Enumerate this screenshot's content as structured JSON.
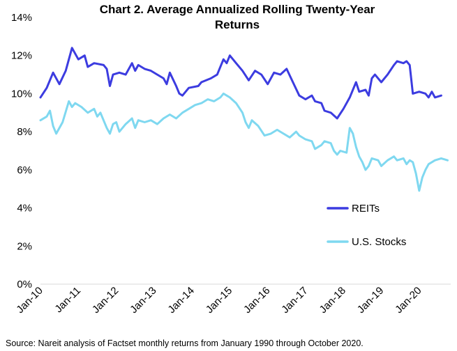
{
  "chart_data": {
    "type": "line",
    "title_line1": "Chart 2. Average Annualized Rolling Twenty-Year",
    "title_line2": "Returns",
    "xlabel": "",
    "ylabel": "",
    "x_tick_labels": [
      "Jan-10",
      "Jan-11",
      "Jan-12",
      "Jan-13",
      "Jan-14",
      "Jan-15",
      "Jan-16",
      "Jan-17",
      "Jan-18",
      "Jan-19",
      "Jan-20"
    ],
    "y_tick_labels": [
      "0%",
      "2%",
      "4%",
      "6%",
      "8%",
      "10%",
      "12%",
      "14%"
    ],
    "ylim": [
      0,
      14
    ],
    "x_unit": "months since Jan-10",
    "xlim": [
      0,
      130
    ],
    "grid": false,
    "legend_position": "right",
    "series": [
      {
        "name": "REITs",
        "color": "#3c3ce0",
        "points": [
          [
            0,
            9.8
          ],
          [
            2,
            10.3
          ],
          [
            4,
            11.1
          ],
          [
            6,
            10.5
          ],
          [
            8,
            11.2
          ],
          [
            10,
            12.4
          ],
          [
            12,
            11.8
          ],
          [
            14,
            12.0
          ],
          [
            15,
            11.4
          ],
          [
            17,
            11.6
          ],
          [
            20,
            11.5
          ],
          [
            21,
            11.3
          ],
          [
            22,
            10.4
          ],
          [
            23,
            11.0
          ],
          [
            25,
            11.1
          ],
          [
            27,
            11.0
          ],
          [
            29,
            11.6
          ],
          [
            30,
            11.2
          ],
          [
            31,
            11.5
          ],
          [
            33,
            11.3
          ],
          [
            35,
            11.2
          ],
          [
            37,
            11.0
          ],
          [
            39,
            10.8
          ],
          [
            40,
            10.5
          ],
          [
            41,
            11.1
          ],
          [
            43,
            10.4
          ],
          [
            44,
            10.0
          ],
          [
            45,
            9.9
          ],
          [
            47,
            10.3
          ],
          [
            50,
            10.4
          ],
          [
            51,
            10.6
          ],
          [
            54,
            10.8
          ],
          [
            56,
            11.0
          ],
          [
            57,
            11.4
          ],
          [
            58,
            11.8
          ],
          [
            59,
            11.6
          ],
          [
            60,
            12.0
          ],
          [
            62,
            11.6
          ],
          [
            64,
            11.2
          ],
          [
            66,
            10.7
          ],
          [
            68,
            11.2
          ],
          [
            70,
            11.0
          ],
          [
            72,
            10.5
          ],
          [
            74,
            11.1
          ],
          [
            76,
            11.0
          ],
          [
            78,
            11.3
          ],
          [
            80,
            10.6
          ],
          [
            82,
            9.9
          ],
          [
            84,
            9.7
          ],
          [
            86,
            9.9
          ],
          [
            87,
            9.6
          ],
          [
            89,
            9.5
          ],
          [
            90,
            9.1
          ],
          [
            92,
            9.0
          ],
          [
            94,
            8.7
          ],
          [
            96,
            9.2
          ],
          [
            98,
            9.8
          ],
          [
            100,
            10.6
          ],
          [
            101,
            10.1
          ],
          [
            103,
            10.2
          ],
          [
            104,
            9.9
          ],
          [
            105,
            10.8
          ],
          [
            106,
            11.0
          ],
          [
            108,
            10.6
          ],
          [
            110,
            11.0
          ],
          [
            112,
            11.5
          ],
          [
            113,
            11.7
          ],
          [
            115,
            11.6
          ],
          [
            116,
            11.7
          ],
          [
            117,
            11.5
          ],
          [
            118,
            10.0
          ],
          [
            120,
            10.1
          ],
          [
            122,
            10.0
          ],
          [
            123,
            9.8
          ],
          [
            124,
            10.1
          ],
          [
            125,
            9.8
          ],
          [
            127,
            9.9
          ]
        ]
      },
      {
        "name": "U.S. Stocks",
        "color": "#7fd8f0",
        "points": [
          [
            0,
            8.6
          ],
          [
            2,
            8.8
          ],
          [
            3,
            9.1
          ],
          [
            4,
            8.3
          ],
          [
            5,
            7.9
          ],
          [
            7,
            8.5
          ],
          [
            9,
            9.6
          ],
          [
            10,
            9.3
          ],
          [
            11,
            9.5
          ],
          [
            13,
            9.3
          ],
          [
            15,
            9.0
          ],
          [
            17,
            9.2
          ],
          [
            18,
            8.8
          ],
          [
            19,
            9.0
          ],
          [
            21,
            8.2
          ],
          [
            22,
            7.9
          ],
          [
            23,
            8.4
          ],
          [
            24,
            8.5
          ],
          [
            25,
            8.0
          ],
          [
            27,
            8.4
          ],
          [
            29,
            8.7
          ],
          [
            30,
            8.2
          ],
          [
            31,
            8.6
          ],
          [
            33,
            8.5
          ],
          [
            35,
            8.6
          ],
          [
            37,
            8.4
          ],
          [
            39,
            8.7
          ],
          [
            41,
            8.9
          ],
          [
            43,
            8.7
          ],
          [
            45,
            9.0
          ],
          [
            47,
            9.2
          ],
          [
            49,
            9.4
          ],
          [
            51,
            9.5
          ],
          [
            53,
            9.7
          ],
          [
            55,
            9.6
          ],
          [
            57,
            9.8
          ],
          [
            58,
            10.0
          ],
          [
            59,
            9.9
          ],
          [
            60,
            9.8
          ],
          [
            62,
            9.5
          ],
          [
            64,
            9.0
          ],
          [
            65,
            8.5
          ],
          [
            66,
            8.2
          ],
          [
            67,
            8.6
          ],
          [
            69,
            8.3
          ],
          [
            71,
            7.8
          ],
          [
            73,
            7.9
          ],
          [
            75,
            8.1
          ],
          [
            77,
            7.9
          ],
          [
            79,
            7.7
          ],
          [
            81,
            8.0
          ],
          [
            82,
            7.8
          ],
          [
            84,
            7.6
          ],
          [
            86,
            7.5
          ],
          [
            87,
            7.1
          ],
          [
            89,
            7.3
          ],
          [
            90,
            7.5
          ],
          [
            92,
            7.4
          ],
          [
            93,
            7.0
          ],
          [
            94,
            6.8
          ],
          [
            95,
            7.0
          ],
          [
            97,
            6.9
          ],
          [
            98,
            8.2
          ],
          [
            99,
            7.9
          ],
          [
            100,
            7.2
          ],
          [
            101,
            6.7
          ],
          [
            102,
            6.4
          ],
          [
            103,
            6.0
          ],
          [
            104,
            6.2
          ],
          [
            105,
            6.6
          ],
          [
            107,
            6.5
          ],
          [
            108,
            6.2
          ],
          [
            110,
            6.5
          ],
          [
            112,
            6.7
          ],
          [
            113,
            6.5
          ],
          [
            115,
            6.6
          ],
          [
            116,
            6.3
          ],
          [
            117,
            6.5
          ],
          [
            118,
            6.4
          ],
          [
            119,
            5.8
          ],
          [
            120,
            4.9
          ],
          [
            121,
            5.6
          ],
          [
            122,
            6.0
          ],
          [
            123,
            6.3
          ],
          [
            125,
            6.5
          ],
          [
            127,
            6.6
          ],
          [
            129,
            6.5
          ]
        ]
      }
    ],
    "source": "Source: Nareit analysis of Factset monthly returns from January 1990 through October 2020."
  }
}
